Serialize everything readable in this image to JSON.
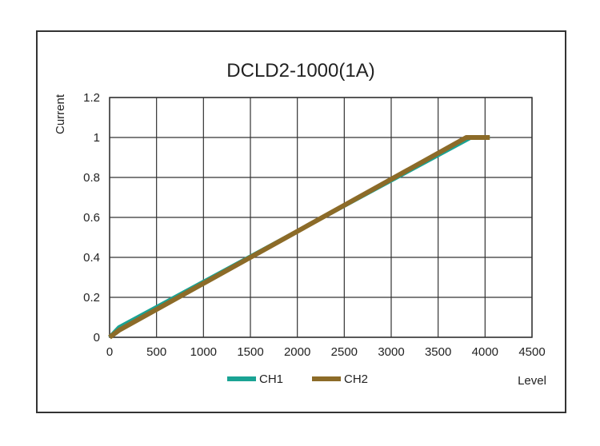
{
  "chart_data": {
    "type": "line",
    "title": "DCLD2-1000(1A)",
    "xlabel": "Level",
    "ylabel": "Current",
    "xlim": [
      0,
      4500
    ],
    "ylim": [
      0,
      1.2
    ],
    "x_ticks": [
      0,
      500,
      1000,
      1500,
      2000,
      2500,
      3000,
      3500,
      4000,
      4500
    ],
    "y_ticks": [
      0,
      0.2,
      0.4,
      0.6,
      0.8,
      1,
      1.2
    ],
    "grid": true,
    "legend_position": "bottom",
    "series": [
      {
        "name": "CH1",
        "color": "#1aa394",
        "points": [
          [
            0,
            0
          ],
          [
            100,
            0.05
          ],
          [
            3850,
            1.0
          ],
          [
            4050,
            1.0
          ]
        ]
      },
      {
        "name": "CH2",
        "color": "#8c6b28",
        "points": [
          [
            0,
            0
          ],
          [
            100,
            0.035
          ],
          [
            3800,
            1.0
          ],
          [
            4050,
            1.0
          ]
        ]
      }
    ]
  }
}
